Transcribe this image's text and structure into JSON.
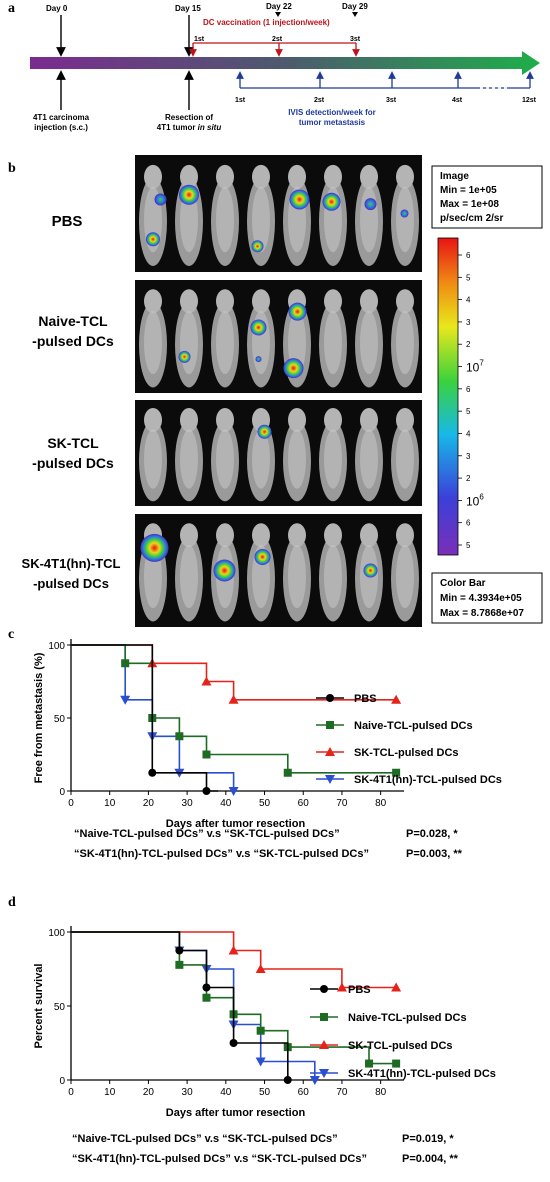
{
  "panel_a": {
    "label": "a",
    "day0": "Day 0",
    "day15": "Day 15",
    "day22": "Day 22",
    "day29": "Day 29",
    "vaccination": "DC vaccination (1 injection/week)",
    "vacc_ticks": [
      "1st",
      "2st",
      "3st"
    ],
    "ivis_ticks": [
      "1st",
      "2st",
      "3st",
      "4st",
      "12st"
    ],
    "injection_line1": "4T1 carcinoma",
    "injection_line2": "injection (s.c.)",
    "resection_line1": "Resection of",
    "resection_line2a": "4T1 tumor ",
    "resection_line2b": "in situ",
    "ivis_line1": "IVIS detection/week for",
    "ivis_line2": "tumor metastasis",
    "colors": {
      "arrow_start": "#7b2b8f",
      "arrow_end": "#1fae4a",
      "vaccination": "#c0121b",
      "ivis": "#1f3a9a"
    }
  },
  "panel_b": {
    "label": "b",
    "groups": [
      "PBS",
      "Naive-TCL|-pulsed DCs",
      "SK-TCL|-pulsed DCs",
      "SK-4T1(hn)-TCL|-pulsed DCs"
    ],
    "image_box": [
      "Image",
      "Min = 1e+05",
      "Max = 1e+08",
      "p/sec/cm  2/sr"
    ],
    "colorbar_box": [
      "Color Bar",
      "Min = 4.3934e+05",
      "Max = 8.7868e+07"
    ],
    "colorbar_ticks": [
      "6",
      "5",
      "4",
      "3",
      "2",
      "10^7",
      "6",
      "5",
      "4",
      "3",
      "2",
      "10^6",
      "6",
      "5"
    ]
  },
  "chart_data": [
    {
      "panel": "c",
      "type": "line",
      "step": true,
      "ylabel": "Free from metastasis (%)",
      "xlabel": "Days after tumor resection",
      "xlim": [
        0,
        85
      ],
      "ylim": [
        0,
        100
      ],
      "xticks": [
        0,
        10,
        20,
        30,
        40,
        50,
        60,
        70,
        80
      ],
      "yticks": [
        0,
        50,
        100
      ],
      "legend_position": "right",
      "series": [
        {
          "name": "PBS",
          "color": "#000000",
          "marker": "circle",
          "steps": [
            [
              0,
              100
            ],
            [
              21,
              100
            ],
            [
              21,
              12.5
            ],
            [
              35,
              12.5
            ],
            [
              35,
              0
            ],
            [
              38,
              0
            ]
          ],
          "markers": [
            [
              21,
              12.5
            ],
            [
              35,
              0
            ]
          ]
        },
        {
          "name": "Naive-TCL-pulsed DCs",
          "color": "#1e6b23",
          "marker": "square",
          "steps": [
            [
              0,
              100
            ],
            [
              14,
              100
            ],
            [
              14,
              87.5
            ],
            [
              21,
              87.5
            ],
            [
              21,
              50
            ],
            [
              28,
              50
            ],
            [
              28,
              37.5
            ],
            [
              35,
              37.5
            ],
            [
              35,
              25
            ],
            [
              56,
              25
            ],
            [
              56,
              12.5
            ],
            [
              84,
              12.5
            ]
          ],
          "markers": [
            [
              14,
              87.5
            ],
            [
              21,
              50
            ],
            [
              28,
              37.5
            ],
            [
              35,
              25
            ],
            [
              56,
              12.5
            ],
            [
              84,
              12.5
            ]
          ]
        },
        {
          "name": "SK-TCL-pulsed DCs",
          "color": "#e5231b",
          "marker": "triangle",
          "steps": [
            [
              0,
              100
            ],
            [
              21,
              100
            ],
            [
              21,
              87.5
            ],
            [
              35,
              87.5
            ],
            [
              35,
              75
            ],
            [
              42,
              75
            ],
            [
              42,
              62.5
            ],
            [
              84,
              62.5
            ]
          ],
          "markers": [
            [
              21,
              87.5
            ],
            [
              35,
              75
            ],
            [
              42,
              62.5
            ],
            [
              84,
              62.5
            ]
          ]
        },
        {
          "name": "SK-4T1(hn)-TCL-pulsed DCs",
          "color": "#2b4fd1",
          "marker": "triangle-down",
          "steps": [
            [
              0,
              100
            ],
            [
              14,
              100
            ],
            [
              14,
              62.5
            ],
            [
              21,
              62.5
            ],
            [
              21,
              37.5
            ],
            [
              28,
              37.5
            ],
            [
              28,
              12.5
            ],
            [
              42,
              12.5
            ],
            [
              42,
              0
            ]
          ],
          "markers": [
            [
              14,
              62.5
            ],
            [
              21,
              37.5
            ],
            [
              28,
              12.5
            ],
            [
              42,
              0
            ]
          ]
        }
      ],
      "stats": [
        {
          "text": "“Naive-TCL-pulsed DCs” v.s “SK-TCL-pulsed DCs”",
          "p": "P=0.028, *"
        },
        {
          "text": "“SK-4T1(hn)-TCL-pulsed DCs” v.s “SK-TCL-pulsed DCs”",
          "p": "P=0.003, **"
        }
      ]
    },
    {
      "panel": "d",
      "type": "line",
      "step": true,
      "ylabel": "Percent survival",
      "xlabel": "Days after tumor resection",
      "xlim": [
        0,
        85
      ],
      "ylim": [
        0,
        100
      ],
      "xticks": [
        0,
        10,
        20,
        30,
        40,
        50,
        60,
        70,
        80
      ],
      "yticks": [
        0,
        50,
        100
      ],
      "legend_position": "right",
      "series": [
        {
          "name": "PBS",
          "color": "#000000",
          "marker": "circle",
          "steps": [
            [
              0,
              100
            ],
            [
              28,
              100
            ],
            [
              28,
              87.5
            ],
            [
              35,
              87.5
            ],
            [
              35,
              62.5
            ],
            [
              42,
              62.5
            ],
            [
              42,
              25
            ],
            [
              56,
              25
            ],
            [
              56,
              0
            ]
          ],
          "markers": [
            [
              28,
              87.5
            ],
            [
              35,
              62.5
            ],
            [
              42,
              25
            ],
            [
              56,
              0
            ]
          ]
        },
        {
          "name": "Naive-TCL-pulsed DCs",
          "color": "#1e6b23",
          "marker": "square",
          "steps": [
            [
              0,
              100
            ],
            [
              28,
              100
            ],
            [
              28,
              77.8
            ],
            [
              35,
              77.8
            ],
            [
              35,
              55.6
            ],
            [
              42,
              55.6
            ],
            [
              42,
              44.4
            ],
            [
              49,
              44.4
            ],
            [
              49,
              33.3
            ],
            [
              56,
              33.3
            ],
            [
              56,
              22.2
            ],
            [
              77,
              22.2
            ],
            [
              77,
              11.1
            ],
            [
              84,
              11.1
            ]
          ],
          "markers": [
            [
              28,
              77.8
            ],
            [
              35,
              55.6
            ],
            [
              42,
              44.4
            ],
            [
              49,
              33.3
            ],
            [
              56,
              22.2
            ],
            [
              77,
              11.1
            ],
            [
              84,
              11.1
            ]
          ]
        },
        {
          "name": "SK-TCL-pulsed DCs",
          "color": "#e5231b",
          "marker": "triangle",
          "steps": [
            [
              0,
              100
            ],
            [
              42,
              100
            ],
            [
              42,
              87.5
            ],
            [
              49,
              87.5
            ],
            [
              49,
              75
            ],
            [
              70,
              75
            ],
            [
              70,
              62.5
            ],
            [
              84,
              62.5
            ]
          ],
          "markers": [
            [
              42,
              87.5
            ],
            [
              49,
              75
            ],
            [
              70,
              62.5
            ],
            [
              84,
              62.5
            ]
          ]
        },
        {
          "name": "SK-4T1(hn)-TCL-pulsed DCs",
          "color": "#2b4fd1",
          "marker": "triangle-down",
          "steps": [
            [
              0,
              100
            ],
            [
              28,
              100
            ],
            [
              28,
              87.5
            ],
            [
              35,
              87.5
            ],
            [
              35,
              75
            ],
            [
              42,
              75
            ],
            [
              42,
              37.5
            ],
            [
              49,
              37.5
            ],
            [
              49,
              12.5
            ],
            [
              63,
              12.5
            ],
            [
              63,
              0
            ]
          ],
          "markers": [
            [
              28,
              87.5
            ],
            [
              35,
              75
            ],
            [
              42,
              37.5
            ],
            [
              49,
              12.5
            ],
            [
              63,
              0
            ]
          ]
        }
      ],
      "stats": [
        {
          "text": "“Naive-TCL-pulsed DCs” v.s “SK-TCL-pulsed DCs”",
          "p": "P=0.019, *"
        },
        {
          "text": "“SK-4T1(hn)-TCL-pulsed DCs” v.s “SK-TCL-pulsed DCs”",
          "p": "P=0.004, **"
        }
      ]
    }
  ]
}
